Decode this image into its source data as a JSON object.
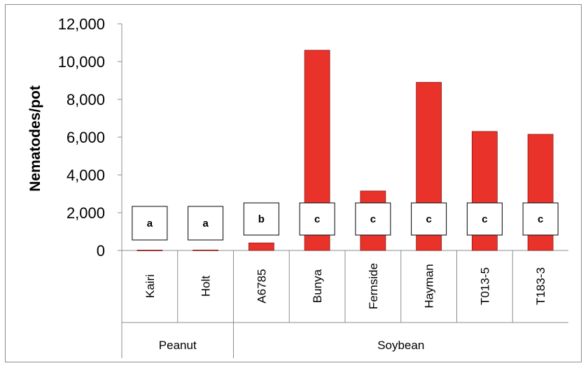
{
  "chart_data": {
    "type": "bar",
    "ylabel": "Nematodes/pot",
    "xlabel": "",
    "ylim": [
      0,
      12000
    ],
    "yticks": [
      0,
      2000,
      4000,
      6000,
      8000,
      10000,
      12000
    ],
    "ytick_labels": [
      "0",
      "2,000",
      "4,000",
      "6,000",
      "8,000",
      "10,000",
      "12,000"
    ],
    "grid": false,
    "legend": "none",
    "categories": [
      "Kairi",
      "Holt",
      "A6785",
      "Bunya",
      "Fernside",
      "Hayman",
      "T013-5",
      "T183-3"
    ],
    "values": [
      20,
      25,
      400,
      10600,
      3150,
      8900,
      6300,
      6150
    ],
    "significance_letters": [
      "a",
      "a",
      "b",
      "c",
      "c",
      "c",
      "c",
      "c"
    ],
    "groups": [
      {
        "label": "Peanut",
        "categories": [
          "Kairi",
          "Holt"
        ]
      },
      {
        "label": "Soybean",
        "categories": [
          "A6785",
          "Bunya",
          "Fernside",
          "Hayman",
          "T013-5",
          "T183-3"
        ]
      }
    ],
    "colors": {
      "bar": "#e8322a",
      "bar_edge": "#8a1e18",
      "axis": "#8c8c8c"
    }
  }
}
